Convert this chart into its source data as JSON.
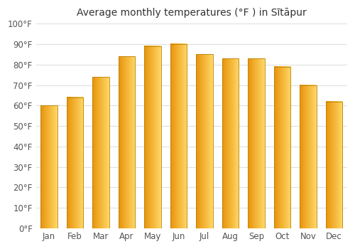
{
  "months": [
    "Jan",
    "Feb",
    "Mar",
    "Apr",
    "May",
    "Jun",
    "Jul",
    "Aug",
    "Sep",
    "Oct",
    "Nov",
    "Dec"
  ],
  "values": [
    60,
    64,
    74,
    84,
    89,
    90,
    85,
    83,
    83,
    79,
    70,
    62
  ],
  "title": "Average monthly temperatures (°F ) in Sītāpur",
  "ylim": [
    0,
    100
  ],
  "yticks": [
    0,
    10,
    20,
    30,
    40,
    50,
    60,
    70,
    80,
    90,
    100
  ],
  "ytick_labels": [
    "0°F",
    "10°F",
    "20°F",
    "30°F",
    "40°F",
    "50°F",
    "60°F",
    "70°F",
    "80°F",
    "90°F",
    "100°F"
  ],
  "background_color": "#ffffff",
  "grid_color": "#e0e0e0",
  "bar_color_left": "#E8920A",
  "bar_color_right": "#FFD966",
  "bar_edge_color": "#B8820A",
  "title_fontsize": 10,
  "tick_fontsize": 8.5,
  "bar_width": 0.65
}
